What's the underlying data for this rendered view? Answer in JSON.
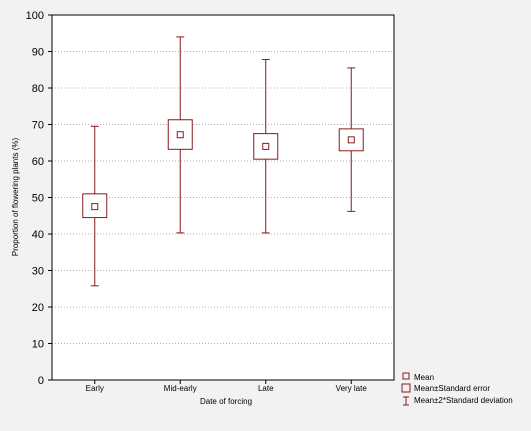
{
  "chart_data": {
    "type": "box",
    "categories": [
      "Early",
      "Mid-early",
      "Late",
      "Very late"
    ],
    "series": [
      {
        "name": "Mean",
        "values": [
          47.5,
          67.2,
          64.0,
          65.8
        ]
      },
      {
        "name": "Mean±Standard error",
        "low": [
          44.5,
          63.2,
          60.5,
          62.8
        ],
        "high": [
          51.0,
          71.3,
          67.5,
          68.8
        ]
      },
      {
        "name": "Mean±2*Standard deviation",
        "low": [
          25.8,
          40.3,
          40.3,
          46.2
        ],
        "high": [
          69.5,
          94.0,
          87.8,
          85.5
        ]
      }
    ],
    "xlabel": "Date of forcing",
    "ylabel": "Proportion of flowering plants (%)",
    "ylim": [
      0,
      100
    ],
    "yticks": [
      0,
      10,
      20,
      30,
      40,
      50,
      60,
      70,
      80,
      90,
      100
    ],
    "grid": true,
    "legend": {
      "position": "bottom-right",
      "entries": [
        "Mean",
        "Mean±Standard error",
        "Mean±2*Standard deviation"
      ]
    },
    "colors": {
      "series": "#8b1a1a",
      "frame": "#000000",
      "grid": "#b0b0b0",
      "plot_background": "#ffffff",
      "page_background": "#f2f2f2"
    }
  }
}
